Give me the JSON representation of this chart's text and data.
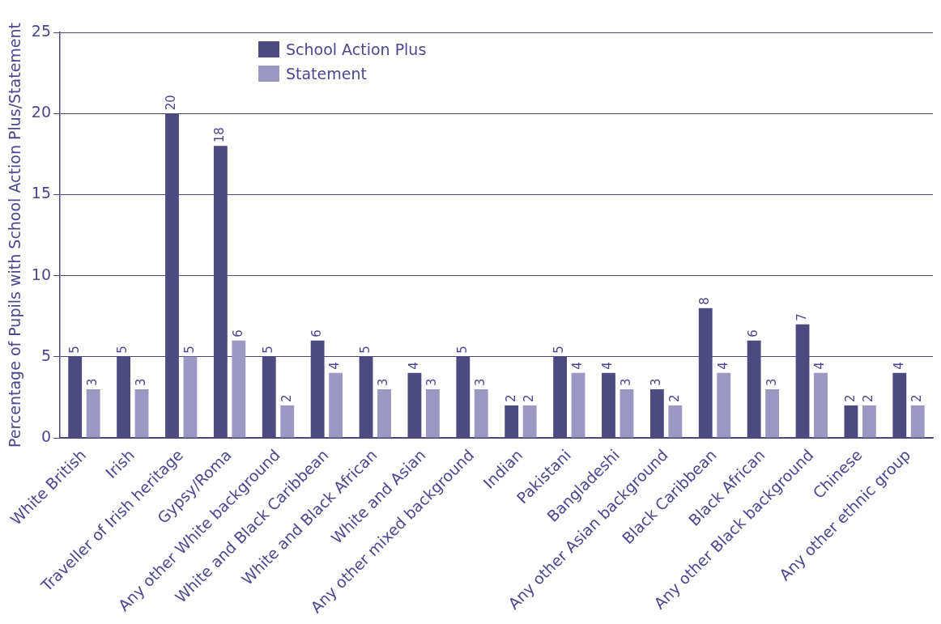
{
  "chart_data": {
    "type": "bar",
    "ylabel": "Percentage of Pupils with School Action Plus/Statement",
    "categories": [
      "White British",
      "Irish",
      "Traveller of Irish heritage",
      "Gypsy/Roma",
      "Any other White background",
      "White and Black Caribbean",
      "White and Black African",
      "White and Asian",
      "Any other mixed background",
      "Indian",
      "Pakistani",
      "Bangladeshi",
      "Any other Asian background",
      "Black Caribbean",
      "Black African",
      "Any other Black background",
      "Chinese",
      "Any other ethnic group"
    ],
    "series": [
      {
        "name": "School Action Plus",
        "color": "#4d4a82",
        "values": [
          5,
          5,
          20,
          18,
          5,
          6,
          5,
          4,
          5,
          2,
          5,
          4,
          3,
          8,
          6,
          7,
          2,
          4
        ]
      },
      {
        "name": "Statement",
        "color": "#9b98c3",
        "values": [
          3,
          3,
          5,
          6,
          2,
          4,
          3,
          3,
          3,
          2,
          4,
          3,
          2,
          4,
          3,
          4,
          2,
          2
        ]
      }
    ],
    "ylim": [
      0,
      25
    ],
    "yticks": [
      0,
      5,
      10,
      15,
      20,
      25
    ],
    "grid": "y",
    "legend": "top left",
    "data_labels": true
  }
}
